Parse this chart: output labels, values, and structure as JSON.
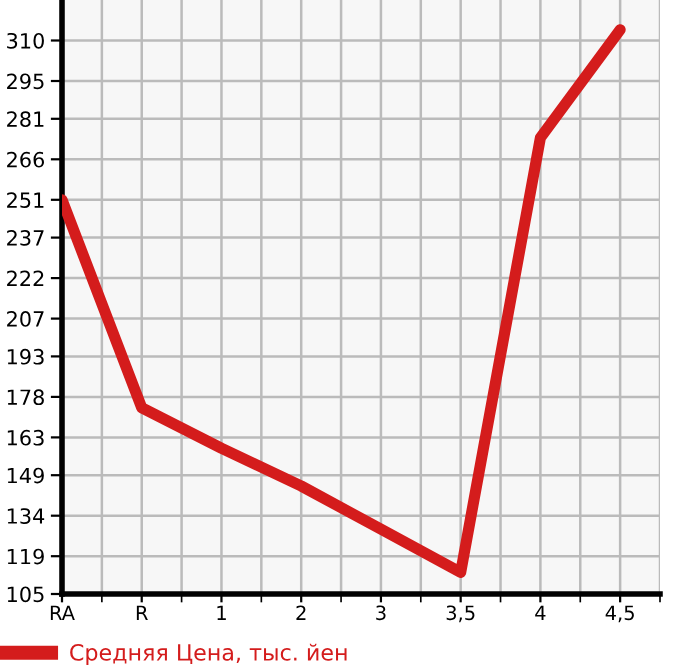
{
  "chart_data": {
    "type": "line",
    "categories": [
      "RA",
      "R",
      "1",
      "2",
      "3",
      "3,5",
      "4",
      "4,5"
    ],
    "series": [
      {
        "name": "Средняя Цена, тыс. йен",
        "color": "#d41c1c",
        "values": [
          251,
          174,
          159,
          145,
          129,
          113,
          274,
          314
        ]
      }
    ],
    "ylim": [
      105,
      325
    ],
    "yticks": [
      105,
      119,
      134,
      149,
      163,
      178,
      193,
      207,
      222,
      237,
      251,
      266,
      281,
      295,
      310
    ],
    "grid": true,
    "legend": "bottom",
    "marker": "none",
    "line_style": "solid"
  }
}
